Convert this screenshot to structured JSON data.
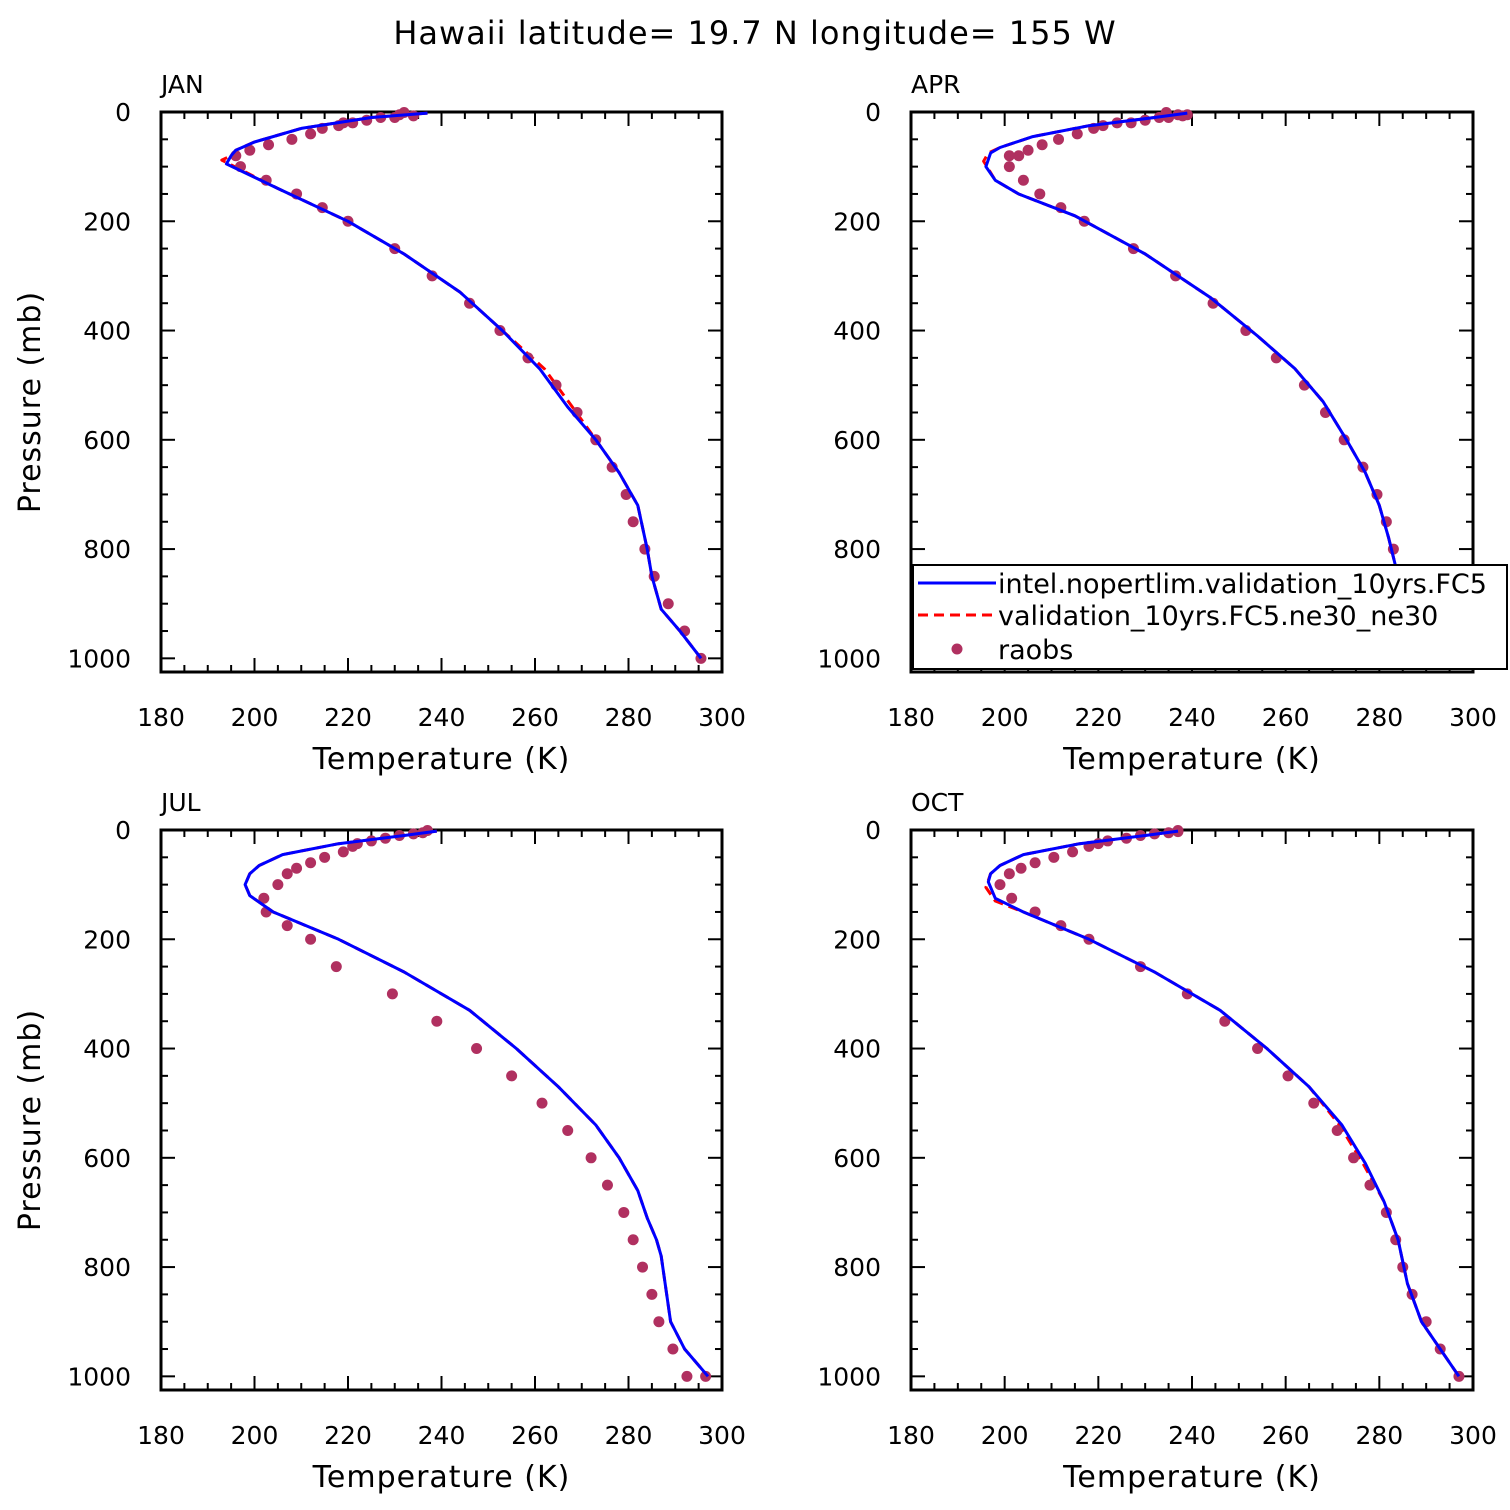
{
  "title": "Hawaii  latitude= 19.7 N longitude= 155 W",
  "colors": {
    "model1": "#0000ff",
    "model2": "#ff0000",
    "obs": "#b03060",
    "axis": "#000000"
  },
  "legend": {
    "placement": "lower-right of APR panel",
    "entries": [
      "intel.nopertlim.validation_10yrs.FC5",
      "validation_10yrs.FC5.ne30_ne30",
      "raobs"
    ]
  },
  "chart_data": [
    {
      "type": "line",
      "panel": "JAN",
      "title": "JAN",
      "xlabel": "Temperature (K)",
      "ylabel": "Pressure (mb)",
      "xlim": [
        180,
        300
      ],
      "ylim": [
        0,
        1000
      ],
      "y_inverted": true,
      "xticks": [
        180,
        200,
        220,
        240,
        260,
        280,
        300
      ],
      "yticks": [
        0,
        200,
        400,
        600,
        800,
        1000
      ],
      "series": [
        {
          "name": "intel.nopertlim.validation_10yrs.FC5",
          "style": "solid",
          "x": [
            237,
            225,
            210,
            200,
            196,
            195,
            194,
            205,
            220,
            232,
            244,
            253,
            261,
            267,
            273,
            278,
            282,
            284,
            285,
            287,
            291,
            295.5
          ],
          "y": [
            2,
            10,
            30,
            55,
            70,
            80,
            95,
            140,
            200,
            260,
            330,
            400,
            470,
            540,
            600,
            660,
            720,
            800,
            850,
            910,
            950,
            1000
          ]
        },
        {
          "name": "validation_10yrs.FC5.ne30_ne30",
          "style": "dashed",
          "x": [
            237,
            225,
            210,
            200,
            196,
            195,
            193,
            205,
            220,
            232,
            244,
            253,
            262,
            268,
            273,
            278,
            282,
            284,
            285,
            287,
            291,
            295.5
          ],
          "y": [
            2,
            10,
            30,
            55,
            70,
            80,
            88,
            140,
            200,
            260,
            330,
            400,
            470,
            540,
            600,
            660,
            720,
            800,
            850,
            910,
            950,
            1000
          ]
        },
        {
          "name": "raobs",
          "style": "dots",
          "x": [
            232,
            231,
            234,
            230,
            227,
            224,
            221,
            219,
            218,
            214.5,
            212,
            208,
            203,
            199,
            196,
            197,
            202.5,
            209,
            214.5,
            220,
            230,
            238,
            246,
            252.5,
            258.5,
            264.5,
            269,
            273,
            276.5,
            279.5,
            281,
            283.5,
            285.5,
            288.5,
            292,
            295.5
          ],
          "y": [
            1,
            5,
            7,
            10,
            10,
            15,
            20,
            20,
            25,
            30,
            40,
            50,
            60,
            70,
            80,
            100,
            125,
            150,
            175,
            200,
            250,
            300,
            350,
            400,
            450,
            500,
            550,
            600,
            650,
            700,
            750,
            800,
            850,
            900,
            950,
            1000
          ]
        }
      ]
    },
    {
      "type": "line",
      "panel": "APR",
      "title": "APR",
      "xlabel": "Temperature (K)",
      "ylabel": "",
      "xlim": [
        180,
        300
      ],
      "ylim": [
        0,
        1000
      ],
      "y_inverted": true,
      "xticks": [
        180,
        200,
        220,
        240,
        260,
        280,
        300
      ],
      "yticks": [
        0,
        200,
        400,
        600,
        800,
        1000
      ],
      "series": [
        {
          "name": "intel.nopertlim.validation_10yrs.FC5",
          "style": "solid",
          "x": [
            239,
            232,
            218,
            206,
            199,
            197,
            196,
            198,
            203,
            215,
            230,
            244,
            254,
            262,
            268,
            273,
            277,
            280,
            282,
            284,
            287,
            291,
            295
          ],
          "y": [
            2,
            10,
            25,
            45,
            65,
            75,
            100,
            125,
            150,
            190,
            260,
            340,
            410,
            470,
            530,
            600,
            660,
            720,
            780,
            850,
            900,
            950,
            1000
          ]
        },
        {
          "name": "validation_10yrs.FC5.ne30_ne30",
          "style": "dashed",
          "x": [
            239,
            232,
            218,
            206,
            199,
            196.5,
            195.5,
            198,
            203,
            215,
            230,
            244,
            254,
            262,
            268,
            273,
            277,
            280,
            282,
            284,
            287,
            291,
            295
          ],
          "y": [
            2,
            10,
            25,
            45,
            65,
            75,
            90,
            125,
            150,
            190,
            260,
            340,
            410,
            470,
            530,
            600,
            660,
            720,
            780,
            850,
            900,
            950,
            1000
          ]
        },
        {
          "name": "raobs",
          "style": "dots",
          "x": [
            234.5,
            239,
            238,
            237,
            235,
            233,
            230,
            227,
            224,
            221,
            219,
            215.5,
            211.5,
            208,
            205,
            203,
            201,
            201,
            204,
            207.5,
            212,
            217,
            227.5,
            236.5,
            244.5,
            251.5,
            258,
            264,
            268.5,
            272.5,
            276.5,
            279.5,
            281.5,
            283,
            285,
            288,
            291,
            295
          ],
          "y": [
            1,
            5,
            7,
            5,
            10,
            10,
            15,
            20,
            20,
            25,
            30,
            40,
            50,
            60,
            70,
            80,
            100,
            80,
            125,
            150,
            175,
            200,
            250,
            300,
            350,
            400,
            450,
            500,
            550,
            600,
            650,
            700,
            750,
            800,
            850,
            900,
            950,
            1000
          ]
        }
      ]
    },
    {
      "type": "line",
      "panel": "JUL",
      "title": "JUL",
      "xlabel": "Temperature (K)",
      "ylabel": "Pressure (mb)",
      "xlim": [
        180,
        300
      ],
      "ylim": [
        0,
        1000
      ],
      "y_inverted": true,
      "xticks": [
        180,
        200,
        220,
        240,
        260,
        280,
        300
      ],
      "yticks": [
        0,
        200,
        400,
        600,
        800,
        1000
      ],
      "series": [
        {
          "name": "intel.nopertlim.validation_10yrs.FC5",
          "style": "solid",
          "x": [
            239,
            232,
            218,
            206,
            201,
            199,
            198,
            199,
            204,
            218,
            232,
            246,
            256,
            265,
            273,
            278,
            282,
            284,
            286,
            287,
            289,
            292,
            297
          ],
          "y": [
            2,
            10,
            25,
            45,
            65,
            80,
            100,
            120,
            150,
            200,
            260,
            330,
            400,
            470,
            540,
            600,
            660,
            710,
            750,
            780,
            900,
            950,
            1000
          ]
        },
        {
          "name": "validation_10yrs.FC5.ne30_ne30",
          "style": "dashed",
          "x": [
            239,
            232,
            218,
            206,
            201,
            199,
            198,
            199,
            204,
            218,
            232,
            246,
            256,
            265,
            273,
            278,
            282,
            284,
            286,
            287,
            289,
            292,
            297
          ],
          "y": [
            2,
            10,
            25,
            45,
            65,
            80,
            100,
            120,
            150,
            200,
            260,
            330,
            400,
            470,
            540,
            600,
            660,
            710,
            750,
            780,
            900,
            950,
            1000
          ]
        },
        {
          "name": "raobs",
          "style": "dots",
          "x": [
            237,
            236,
            234,
            231,
            228,
            225,
            222,
            221,
            219,
            215,
            212,
            209,
            207,
            205,
            202,
            202.5,
            207,
            212,
            217.5,
            229.5,
            239,
            247.5,
            255,
            261.5,
            267,
            272,
            275.5,
            279,
            281,
            283,
            285,
            286.5,
            289.5,
            292.5,
            296.5
          ],
          "y": [
            1,
            5,
            7,
            10,
            15,
            20,
            25,
            30,
            40,
            50,
            60,
            70,
            80,
            100,
            125,
            150,
            175,
            200,
            250,
            300,
            350,
            400,
            450,
            500,
            550,
            600,
            650,
            700,
            750,
            800,
            850,
            900,
            950,
            1000,
            1000
          ]
        }
      ]
    },
    {
      "type": "line",
      "panel": "OCT",
      "title": "OCT",
      "xlabel": "Temperature (K)",
      "ylabel": "",
      "xlim": [
        180,
        300
      ],
      "ylim": [
        0,
        1000
      ],
      "y_inverted": true,
      "xticks": [
        180,
        200,
        220,
        240,
        260,
        280,
        300
      ],
      "yticks": [
        0,
        200,
        400,
        600,
        800,
        1000
      ],
      "series": [
        {
          "name": "intel.nopertlim.validation_10yrs.FC5",
          "style": "solid",
          "x": [
            237,
            230,
            216,
            204,
            199,
            197,
            196.5,
            198,
            204,
            218,
            232,
            246,
            256,
            265,
            272,
            277,
            281,
            284,
            286,
            289,
            293,
            297
          ],
          "y": [
            2,
            10,
            25,
            45,
            65,
            80,
            95,
            125,
            150,
            200,
            260,
            330,
            400,
            470,
            540,
            610,
            680,
            750,
            830,
            900,
            950,
            1000
          ]
        },
        {
          "name": "validation_10yrs.FC5.ne30_ne30",
          "style": "dashed",
          "x": [
            237,
            230,
            216,
            204,
            199,
            197,
            196,
            198,
            204,
            218,
            232,
            246,
            256,
            265,
            271.5,
            276.5,
            281,
            284,
            286,
            289,
            293,
            297
          ],
          "y": [
            2,
            10,
            25,
            45,
            65,
            80,
            105,
            130,
            150,
            200,
            260,
            330,
            400,
            470,
            540,
            610,
            680,
            750,
            830,
            900,
            950,
            1000
          ]
        },
        {
          "name": "raobs",
          "style": "dots",
          "x": [
            237,
            237,
            235,
            232,
            229,
            226,
            222,
            220,
            218,
            214.5,
            210.5,
            206.5,
            203.5,
            201,
            199,
            201.5,
            206.5,
            212,
            218,
            229,
            239,
            247,
            254,
            260.5,
            266,
            271,
            274.5,
            278,
            281.5,
            283.5,
            285,
            287,
            290,
            293,
            297
          ],
          "y": [
            1,
            3,
            5,
            7,
            10,
            15,
            20,
            25,
            30,
            40,
            50,
            60,
            70,
            80,
            100,
            125,
            150,
            175,
            200,
            250,
            300,
            350,
            400,
            450,
            500,
            550,
            600,
            650,
            700,
            750,
            800,
            850,
            900,
            950,
            1000
          ]
        }
      ]
    }
  ]
}
